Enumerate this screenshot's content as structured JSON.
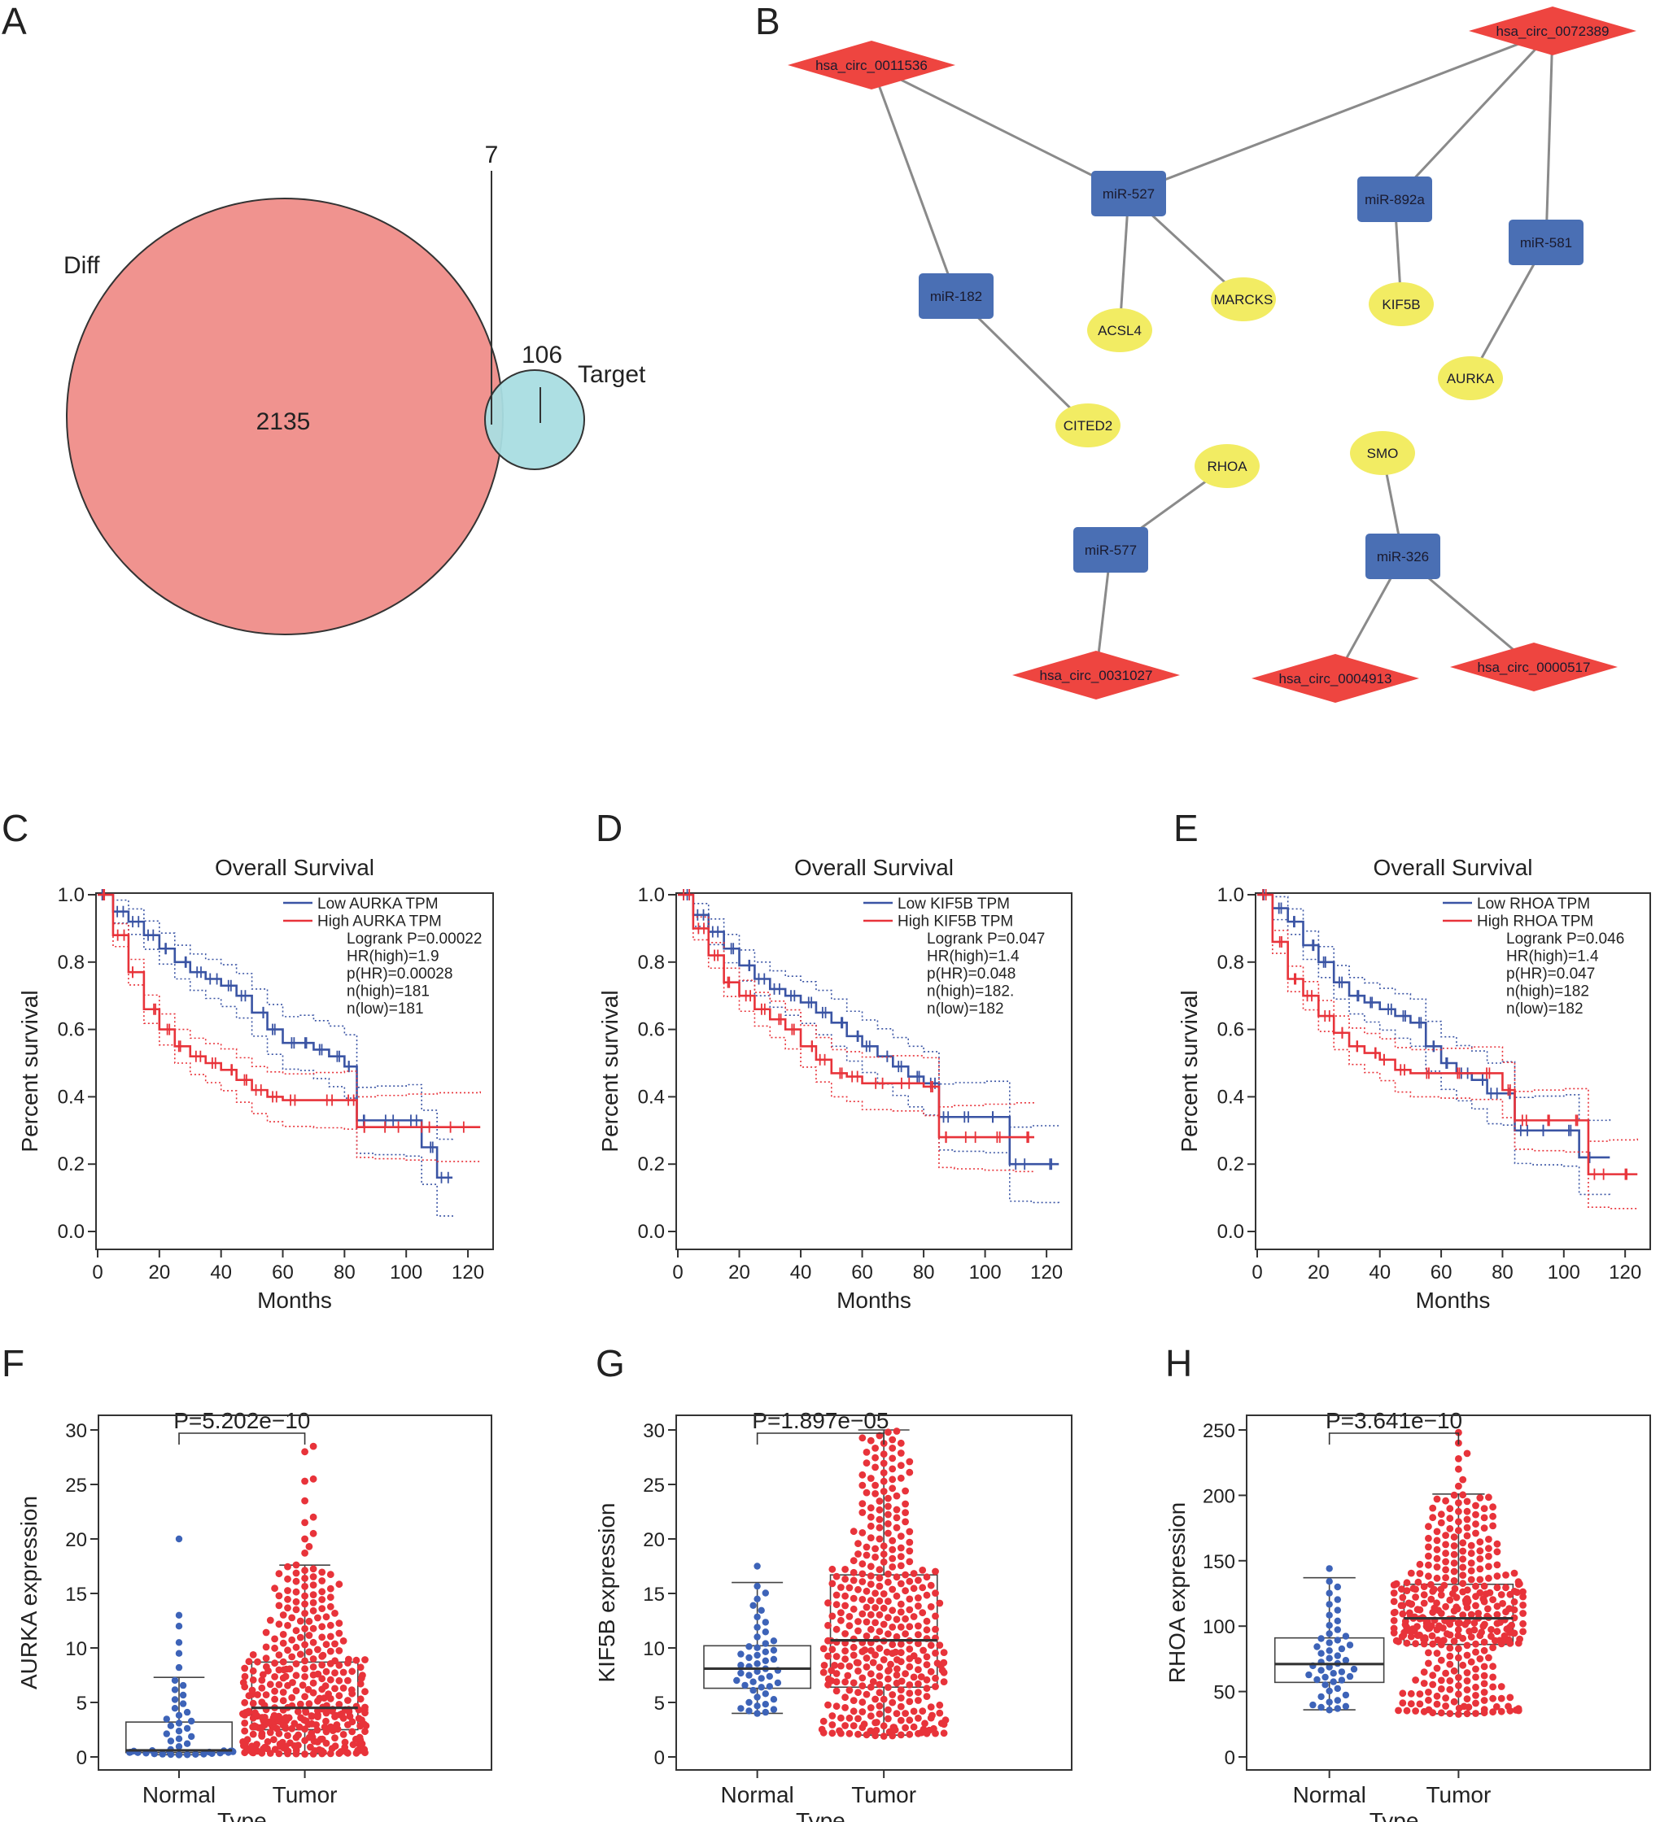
{
  "panels": {
    "A": "A",
    "B": "B",
    "C": "C",
    "D": "D",
    "E": "E",
    "F": "F",
    "G": "G",
    "H": "H"
  },
  "venn": {
    "diff_label": "Diff",
    "target_label": "Target",
    "diff_only": "2135",
    "target_only": "106",
    "overlap": "7",
    "diff_color": "#f0938f",
    "target_color": "#a9dde2"
  },
  "network": {
    "circ_color": "#ee4540",
    "mirna_color": "#4a6fb4",
    "gene_color": "#f2ec63",
    "edge_color": "#8a8a8a",
    "nodes": [
      {
        "id": "c0011536",
        "label": "hsa_circ_0011536",
        "type": "circRNA"
      },
      {
        "id": "c0072389",
        "label": "hsa_circ_0072389",
        "type": "circRNA"
      },
      {
        "id": "m527",
        "label": "miR-527",
        "type": "miRNA"
      },
      {
        "id": "m892a",
        "label": "miR-892a",
        "type": "miRNA"
      },
      {
        "id": "m581",
        "label": "miR-581",
        "type": "miRNA"
      },
      {
        "id": "m182",
        "label": "miR-182",
        "type": "miRNA"
      },
      {
        "id": "gACSL4",
        "label": "ACSL4",
        "type": "gene"
      },
      {
        "id": "gMARCKS",
        "label": "MARCKS",
        "type": "gene"
      },
      {
        "id": "gKIF5B",
        "label": "KIF5B",
        "type": "gene"
      },
      {
        "id": "gAURKA",
        "label": "AURKA",
        "type": "gene"
      },
      {
        "id": "gCITED2",
        "label": "CITED2",
        "type": "gene"
      },
      {
        "id": "gRHOA",
        "label": "RHOA",
        "type": "gene"
      },
      {
        "id": "gSMO",
        "label": "SMO",
        "type": "gene"
      },
      {
        "id": "m577",
        "label": "miR-577",
        "type": "miRNA"
      },
      {
        "id": "m326",
        "label": "miR-326",
        "type": "miRNA"
      },
      {
        "id": "c0031027",
        "label": "hsa_circ_0031027",
        "type": "circRNA"
      },
      {
        "id": "c0004913",
        "label": "hsa_circ_0004913",
        "type": "circRNA"
      },
      {
        "id": "c0000517",
        "label": "hsa_circ_0000517",
        "type": "circRNA"
      }
    ],
    "edges": [
      [
        "c0011536",
        "m527"
      ],
      [
        "c0011536",
        "m182"
      ],
      [
        "c0072389",
        "m527"
      ],
      [
        "c0072389",
        "m892a"
      ],
      [
        "c0072389",
        "m581"
      ],
      [
        "m527",
        "gACSL4"
      ],
      [
        "m527",
        "gMARCKS"
      ],
      [
        "m892a",
        "gKIF5B"
      ],
      [
        "m581",
        "gAURKA"
      ],
      [
        "m182",
        "gCITED2"
      ],
      [
        "gRHOA",
        "m577"
      ],
      [
        "m577",
        "c0031027"
      ],
      [
        "gSMO",
        "m326"
      ],
      [
        "m326",
        "c0004913"
      ],
      [
        "m326",
        "c0000517"
      ]
    ]
  },
  "km_plots": [
    {
      "title": "Overall Survival",
      "xlabel": "Months",
      "ylabel": "Percent survival",
      "legend": [
        "Low AURKA TPM",
        "High AURKA TPM",
        "Logrank P=0.00022",
        "HR(high)=1.9",
        "p(HR)=0.00028",
        "n(high)=181",
        "n(low)=181"
      ]
    },
    {
      "title": "Overall Survival",
      "xlabel": "Months",
      "ylabel": "Percent survival",
      "legend": [
        "Low KIF5B TPM",
        "High KIF5B TPM",
        "Logrank P=0.047",
        "HR(high)=1.4",
        "p(HR)=0.048",
        "n(high)=182.",
        "n(low)=182"
      ]
    },
    {
      "title": "Overall Survival",
      "xlabel": "Months",
      "ylabel": "Percent survival",
      "legend": [
        "Low RHOA TPM",
        "High RHOA TPM",
        "Logrank P=0.046",
        "HR(high)=1.4",
        "p(HR)=0.047",
        "n(high)=182",
        "n(low)=182"
      ]
    }
  ],
  "box_plots": [
    {
      "ylabel": "AURKA expression",
      "xlabel": "Type",
      "pvalue": "P=5.202e−10",
      "categories": [
        "Normal",
        "Tumor"
      ]
    },
    {
      "ylabel": "KIF5B expression",
      "xlabel": "Type",
      "pvalue": "P=1.897e−05",
      "categories": [
        "Normal",
        "Tumor"
      ]
    },
    {
      "ylabel": "RHOA expression",
      "xlabel": "Type",
      "pvalue": "P=3.641e−10",
      "categories": [
        "Normal",
        "Tumor"
      ]
    }
  ],
  "chart_data": [
    {
      "type": "scatter",
      "panel": "C",
      "title": "Overall Survival",
      "xlabel": "Months",
      "ylabel": "Percent survival",
      "xlim": [
        0,
        125
      ],
      "ylim": [
        0,
        1
      ],
      "xticks": [
        0,
        20,
        40,
        60,
        80,
        100,
        120
      ],
      "yticks": [
        0.0,
        0.2,
        0.4,
        0.6,
        0.8,
        1.0
      ],
      "colors": {
        "low": "#3a54a4",
        "high": "#e8333a"
      },
      "series": [
        {
          "name": "Low AURKA TPM",
          "x": [
            0,
            5,
            10,
            15,
            20,
            25,
            30,
            35,
            40,
            45,
            50,
            55,
            60,
            65,
            70,
            75,
            80,
            84,
            90,
            100,
            105,
            110,
            115
          ],
          "y": [
            1.0,
            0.95,
            0.92,
            0.88,
            0.84,
            0.8,
            0.77,
            0.75,
            0.73,
            0.7,
            0.65,
            0.6,
            0.56,
            0.56,
            0.54,
            0.52,
            0.49,
            0.33,
            0.33,
            0.33,
            0.25,
            0.16,
            0.16
          ]
        },
        {
          "name": "High AURKA TPM",
          "x": [
            0,
            5,
            10,
            15,
            20,
            25,
            30,
            35,
            40,
            45,
            50,
            55,
            60,
            70,
            80,
            84,
            90,
            100,
            110,
            124
          ],
          "y": [
            1.0,
            0.88,
            0.77,
            0.66,
            0.6,
            0.55,
            0.52,
            0.5,
            0.48,
            0.45,
            0.42,
            0.4,
            0.39,
            0.39,
            0.39,
            0.31,
            0.31,
            0.31,
            0.31,
            0.31
          ]
        }
      ]
    },
    {
      "type": "scatter",
      "panel": "D",
      "title": "Overall Survival",
      "xlabel": "Months",
      "ylabel": "Percent survival",
      "xlim": [
        0,
        125
      ],
      "ylim": [
        0,
        1
      ],
      "xticks": [
        0,
        20,
        40,
        60,
        80,
        100,
        120
      ],
      "yticks": [
        0.0,
        0.2,
        0.4,
        0.6,
        0.8,
        1.0
      ],
      "colors": {
        "low": "#3a54a4",
        "high": "#e8333a"
      },
      "series": [
        {
          "name": "Low KIF5B TPM",
          "x": [
            0,
            5,
            10,
            15,
            20,
            25,
            30,
            35,
            40,
            45,
            50,
            55,
            60,
            65,
            70,
            75,
            80,
            85,
            90,
            100,
            108,
            115,
            124
          ],
          "y": [
            1.0,
            0.94,
            0.89,
            0.84,
            0.79,
            0.75,
            0.72,
            0.7,
            0.68,
            0.65,
            0.62,
            0.58,
            0.55,
            0.52,
            0.49,
            0.46,
            0.44,
            0.34,
            0.34,
            0.34,
            0.2,
            0.2,
            0.2
          ]
        },
        {
          "name": "High KIF5B TPM",
          "x": [
            0,
            5,
            10,
            15,
            20,
            25,
            30,
            35,
            40,
            45,
            50,
            55,
            60,
            70,
            80,
            85,
            90,
            100,
            110,
            116
          ],
          "y": [
            1.0,
            0.9,
            0.82,
            0.74,
            0.7,
            0.66,
            0.63,
            0.6,
            0.55,
            0.51,
            0.47,
            0.46,
            0.44,
            0.44,
            0.43,
            0.28,
            0.28,
            0.28,
            0.28,
            0.28
          ]
        }
      ]
    },
    {
      "type": "scatter",
      "panel": "E",
      "title": "Overall Survival",
      "xlabel": "Months",
      "ylabel": "Percent survival",
      "xlim": [
        0,
        125
      ],
      "ylim": [
        0,
        1
      ],
      "xticks": [
        0,
        20,
        40,
        60,
        80,
        100,
        120
      ],
      "yticks": [
        0.0,
        0.2,
        0.4,
        0.6,
        0.8,
        1.0
      ],
      "colors": {
        "low": "#3a54a4",
        "high": "#e8333a"
      },
      "series": [
        {
          "name": "Low RHOA TPM",
          "x": [
            0,
            5,
            10,
            15,
            20,
            25,
            30,
            35,
            40,
            45,
            50,
            55,
            60,
            65,
            70,
            75,
            80,
            84,
            90,
            100,
            105,
            115
          ],
          "y": [
            1.0,
            0.96,
            0.92,
            0.85,
            0.8,
            0.74,
            0.7,
            0.68,
            0.66,
            0.64,
            0.62,
            0.55,
            0.5,
            0.47,
            0.45,
            0.41,
            0.41,
            0.3,
            0.3,
            0.3,
            0.22,
            0.22
          ]
        },
        {
          "name": "High RHOA TPM",
          "x": [
            0,
            5,
            10,
            15,
            20,
            25,
            30,
            35,
            40,
            45,
            50,
            60,
            70,
            80,
            84,
            90,
            100,
            108,
            115,
            124
          ],
          "y": [
            1.0,
            0.86,
            0.75,
            0.7,
            0.64,
            0.59,
            0.55,
            0.53,
            0.51,
            0.48,
            0.47,
            0.47,
            0.47,
            0.42,
            0.33,
            0.33,
            0.33,
            0.17,
            0.17,
            0.17
          ]
        }
      ]
    },
    {
      "type": "scatter",
      "panel": "F",
      "xlabel": "Type",
      "ylabel": "AURKA expression",
      "categories": [
        "Normal",
        "Tumor"
      ],
      "ylim": [
        0,
        30
      ],
      "yticks": [
        0,
        5,
        10,
        15,
        20,
        25,
        30
      ],
      "annotation": "P=5.202e−10",
      "colors": {
        "Normal": "#3d63b8",
        "Tumor": "#e8333a"
      },
      "box": [
        {
          "name": "Normal",
          "whisker_low": 0.2,
          "q1": 0.4,
          "median": 0.6,
          "q3": 3.2,
          "whisker_high": 7.3,
          "n": 50,
          "outliers": [
            20,
            13,
            12,
            10.5,
            9.5,
            8.2
          ]
        },
        {
          "name": "Tumor",
          "whisker_low": 0.3,
          "q1": 2.5,
          "median": 4.5,
          "q3": 8.7,
          "whisker_high": 17.6,
          "n": 374,
          "outliers": [
            28.5,
            28,
            25.5,
            25.3,
            23.5,
            22,
            21.5,
            20.5,
            20,
            19.3,
            18.7
          ]
        }
      ]
    },
    {
      "type": "scatter",
      "panel": "G",
      "xlabel": "Type",
      "ylabel": "KIF5B expression",
      "categories": [
        "Normal",
        "Tumor"
      ],
      "ylim": [
        0,
        30
      ],
      "yticks": [
        0,
        5,
        10,
        15,
        20,
        25,
        30
      ],
      "annotation": "P=1.897e−05",
      "colors": {
        "Normal": "#3d63b8",
        "Tumor": "#e8333a"
      },
      "box": [
        {
          "name": "Normal",
          "whisker_low": 4.0,
          "q1": 6.3,
          "median": 8.1,
          "q3": 10.2,
          "whisker_high": 16.0,
          "n": 50,
          "outliers": [
            17.5
          ]
        },
        {
          "name": "Tumor",
          "whisker_low": 2.0,
          "q1": 6.4,
          "median": 10.7,
          "q3": 16.7,
          "whisker_high": 30.0,
          "n": 374,
          "outliers": []
        }
      ]
    },
    {
      "type": "scatter",
      "panel": "H",
      "xlabel": "Type",
      "ylabel": "RHOA expression",
      "categories": [
        "Normal",
        "Tumor"
      ],
      "ylim": [
        0,
        250
      ],
      "yticks": [
        0,
        50,
        100,
        150,
        200,
        250
      ],
      "annotation": "P=3.641e−10",
      "colors": {
        "Normal": "#3d63b8",
        "Tumor": "#e8333a"
      },
      "box": [
        {
          "name": "Normal",
          "whisker_low": 36,
          "q1": 57,
          "median": 71,
          "q3": 91,
          "whisker_high": 137,
          "n": 50,
          "outliers": [
            144
          ]
        },
        {
          "name": "Tumor",
          "whisker_low": 33,
          "q1": 86,
          "median": 106,
          "q3": 132,
          "whisker_high": 201,
          "n": 374,
          "outliers": [
            248,
            240,
            232,
            228,
            220,
            212,
            207
          ]
        }
      ]
    }
  ]
}
